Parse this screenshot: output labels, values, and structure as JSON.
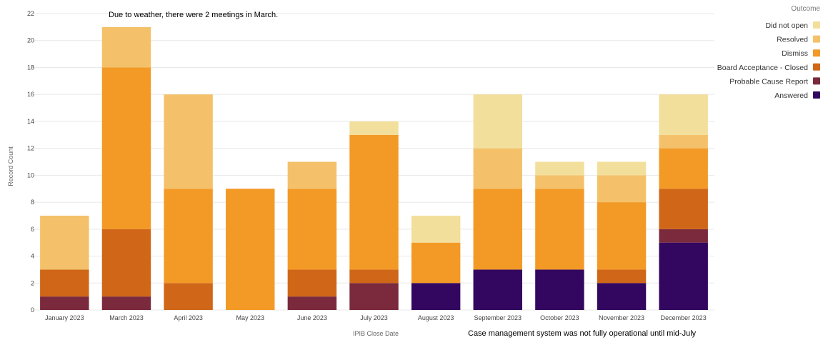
{
  "chart_data": {
    "type": "bar",
    "stacked": true,
    "xlabel": "IPIB Close Date",
    "ylabel": "Record Count",
    "ylim": [
      0,
      22
    ],
    "yticks": [
      0,
      2,
      4,
      6,
      8,
      10,
      12,
      14,
      16,
      18,
      20,
      22
    ],
    "grid": true,
    "legend_title": "Outcome",
    "legend_position": "top-right",
    "categories": [
      "January 2023",
      "March 2023",
      "April 2023",
      "May 2023",
      "June 2023",
      "July 2023",
      "August 2023",
      "September 2023",
      "October 2023",
      "November 2023",
      "December 2023"
    ],
    "series": [
      {
        "name": "Answered",
        "color": "#33065f",
        "values": [
          0,
          0,
          0,
          0,
          0,
          0,
          2,
          3,
          3,
          2,
          5
        ]
      },
      {
        "name": "Probable Cause Report",
        "color": "#7a2a3c",
        "values": [
          1,
          1,
          0,
          0,
          1,
          2,
          0,
          0,
          0,
          0,
          1
        ]
      },
      {
        "name": "Board Acceptance - Closed",
        "color": "#d06617",
        "values": [
          2,
          5,
          2,
          0,
          2,
          1,
          0,
          0,
          0,
          1,
          3
        ]
      },
      {
        "name": "Dismiss",
        "color": "#f39a26",
        "values": [
          0,
          12,
          7,
          9,
          6,
          10,
          3,
          6,
          6,
          5,
          3
        ]
      },
      {
        "name": "Resolved",
        "color": "#f4c16a",
        "values": [
          4,
          3,
          7,
          0,
          2,
          0,
          0,
          3,
          1,
          2,
          1
        ]
      },
      {
        "name": "Did not open",
        "color": "#f3df9c",
        "values": [
          0,
          0,
          0,
          0,
          0,
          1,
          2,
          4,
          1,
          1,
          3
        ]
      }
    ],
    "legend_order": [
      "Did not open",
      "Resolved",
      "Dismiss",
      "Board Acceptance - Closed",
      "Probable Cause Report",
      "Answered"
    ],
    "annotations": [
      {
        "text": "Due to weather, there were 2 meetings in March."
      },
      {
        "text": "Case management system was not fully operational until mid-July"
      }
    ]
  }
}
